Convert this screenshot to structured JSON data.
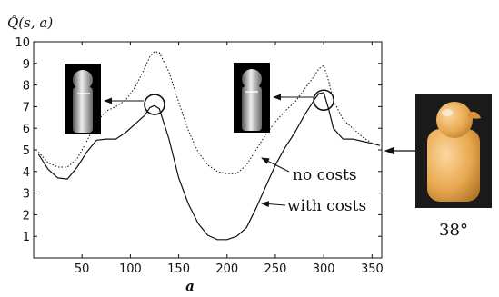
{
  "chart_data": {
    "type": "line",
    "ylabel": "Q̂(s, a)",
    "xlabel": "a",
    "xlim": [
      0,
      360
    ],
    "ylim": [
      0,
      10
    ],
    "xticks": [
      50,
      100,
      150,
      200,
      250,
      300,
      350
    ],
    "yticks": [
      1,
      2,
      3,
      4,
      5,
      6,
      7,
      8,
      9,
      10
    ],
    "series": [
      {
        "name": "no costs",
        "style": "dotted",
        "x": [
          5,
          15,
          25,
          35,
          45,
          55,
          65,
          75,
          85,
          95,
          105,
          115,
          120,
          125,
          130,
          140,
          150,
          160,
          170,
          180,
          190,
          200,
          210,
          220,
          230,
          240,
          250,
          260,
          270,
          280,
          290,
          295,
          300,
          305,
          310,
          320,
          330,
          340,
          350,
          358
        ],
        "y": [
          4.9,
          4.4,
          4.2,
          4.2,
          4.6,
          5.4,
          6.3,
          6.8,
          7.0,
          7.3,
          7.9,
          8.8,
          9.3,
          9.55,
          9.5,
          8.6,
          7.2,
          5.9,
          4.9,
          4.3,
          4.0,
          3.9,
          3.9,
          4.3,
          5.0,
          5.7,
          6.3,
          6.8,
          7.2,
          7.8,
          8.4,
          8.75,
          8.9,
          8.2,
          7.3,
          6.4,
          6.0,
          5.6,
          5.3,
          5.2
        ]
      },
      {
        "name": "with costs",
        "style": "solid",
        "x": [
          5,
          15,
          25,
          35,
          45,
          55,
          65,
          75,
          85,
          95,
          105,
          115,
          120,
          125,
          130,
          140,
          150,
          160,
          170,
          180,
          190,
          200,
          210,
          220,
          230,
          240,
          250,
          260,
          270,
          280,
          290,
          295,
          300,
          305,
          310,
          320,
          330,
          340,
          350,
          358
        ],
        "y": [
          4.8,
          4.1,
          3.7,
          3.65,
          4.2,
          4.9,
          5.45,
          5.5,
          5.5,
          5.8,
          6.2,
          6.6,
          6.95,
          7.05,
          6.9,
          5.5,
          3.7,
          2.5,
          1.6,
          1.05,
          0.85,
          0.85,
          1.0,
          1.4,
          2.3,
          3.3,
          4.3,
          5.1,
          5.8,
          6.6,
          7.3,
          7.6,
          7.65,
          6.9,
          6.0,
          5.5,
          5.5,
          5.4,
          5.3,
          5.2
        ]
      }
    ],
    "annotations": [
      {
        "label": "no costs"
      },
      {
        "label": "with costs"
      }
    ],
    "markers": [
      {
        "x": 125,
        "y": 7.1,
        "type": "circle"
      },
      {
        "x": 300,
        "y": 7.3,
        "type": "circle"
      }
    ],
    "side_image": {
      "caption": "38°",
      "marker_y": 5
    }
  }
}
